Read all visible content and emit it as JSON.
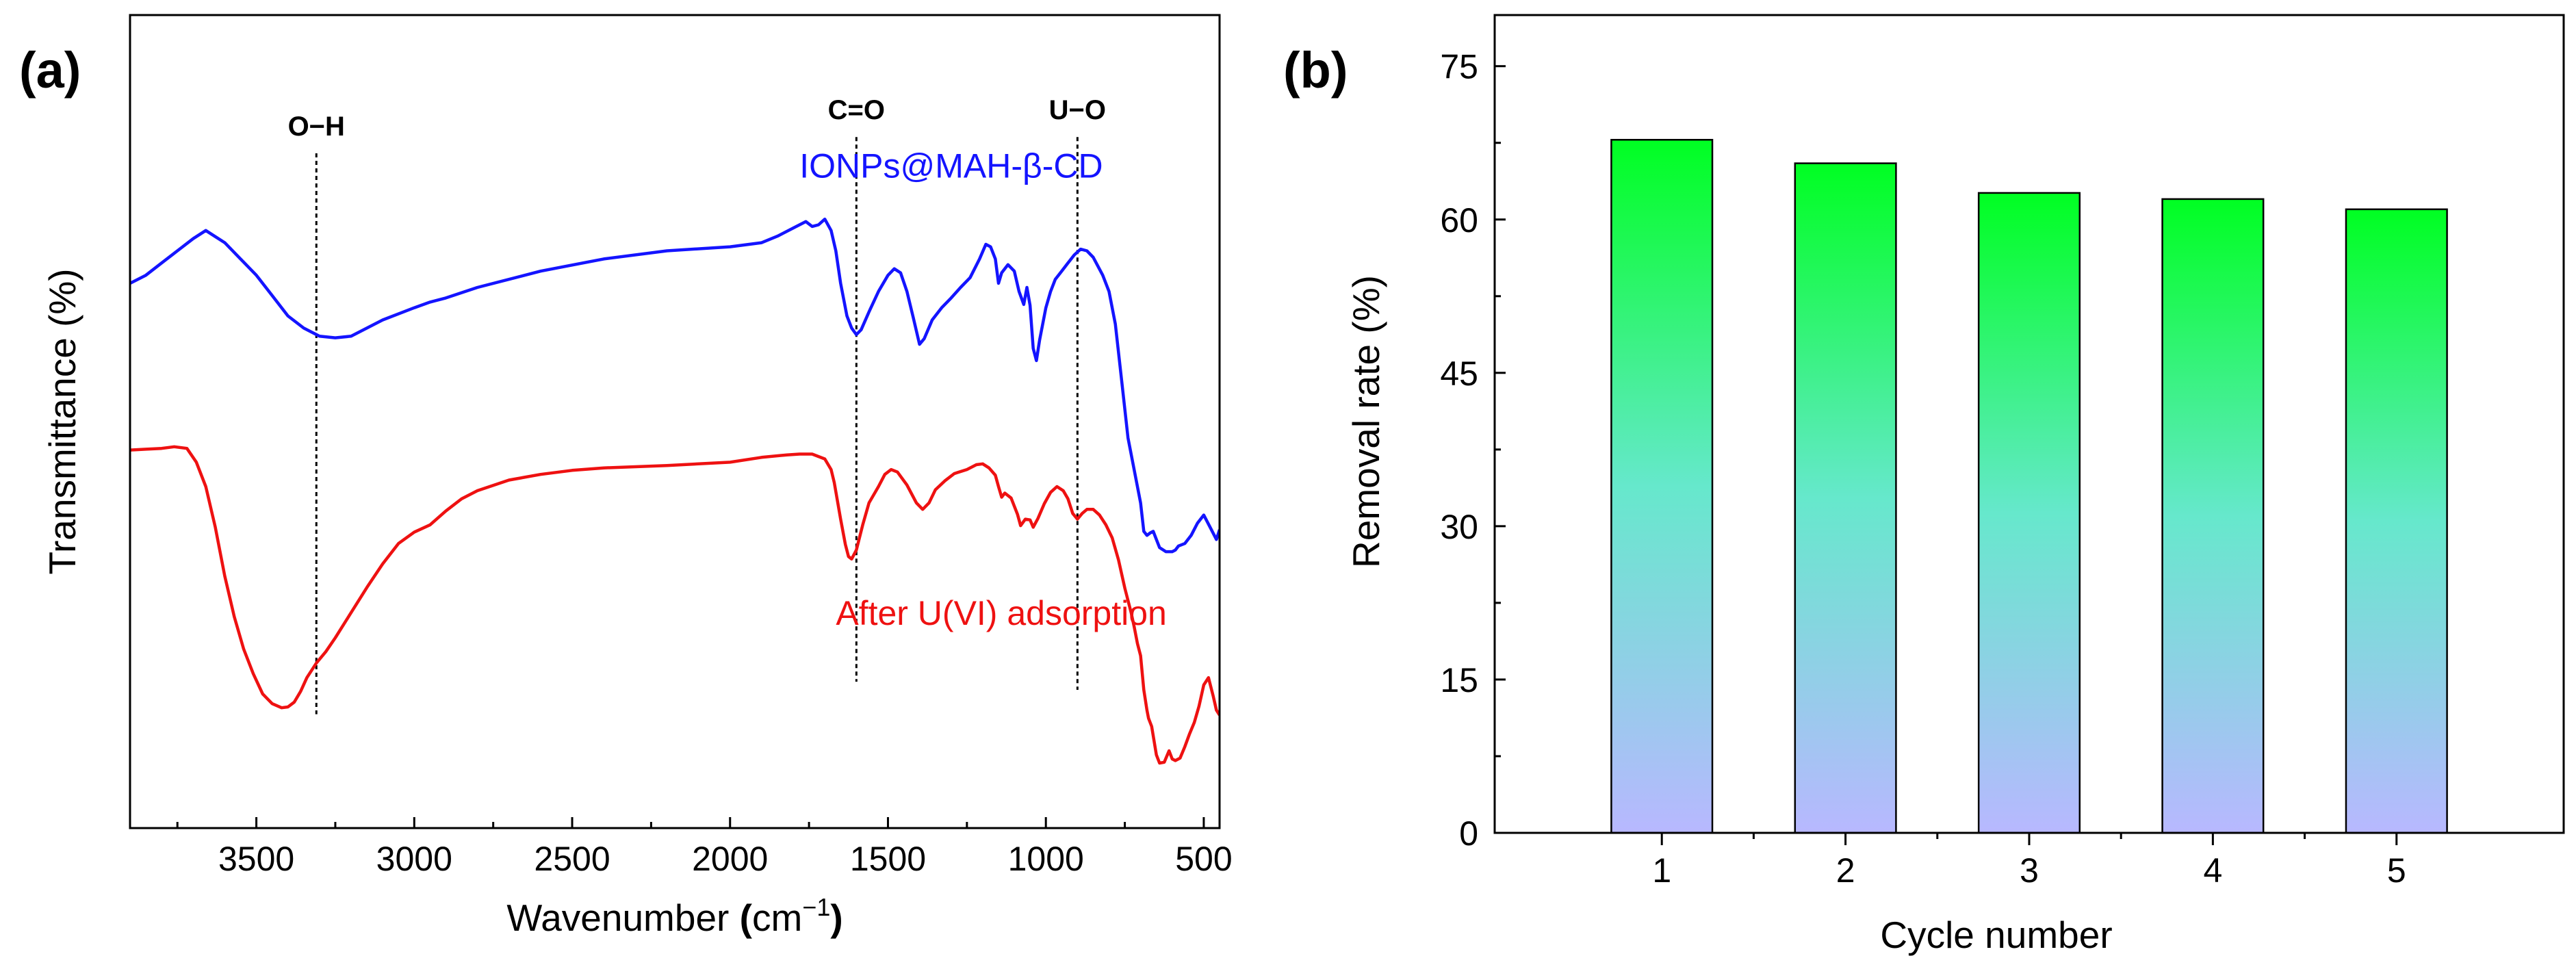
{
  "panel_a": {
    "label": "(a)"
  },
  "panel_b": {
    "label": "(b)"
  },
  "chart_data": [
    {
      "type": "line",
      "title": "",
      "xlabel": "Wavenumber (cm⁻¹)",
      "xlabel_main": "Wavenumber ",
      "xlabel_paren_open": "(",
      "xlabel_unit": "cm",
      "xlabel_sup": "−1",
      "xlabel_paren_close": ")",
      "ylabel": "Transmittance (%)",
      "xlim": [
        3900,
        450
      ],
      "x_reversed": true,
      "xticks": [
        3500,
        3000,
        2500,
        2000,
        1500,
        1000,
        500
      ],
      "xtick_labels": [
        "3500",
        "3000",
        "2500",
        "2000",
        "1500",
        "1000",
        "500"
      ],
      "y_units": "arbitrary (0 = bottom axis, 100 = top axis)",
      "ylim": [
        0,
        100
      ],
      "annotations": [
        {
          "text": "O−H",
          "x": 3310,
          "y_from": 14,
          "y_to": 83
        },
        {
          "text": "C=O",
          "x": 1600,
          "y_from": 18,
          "y_to": 85
        },
        {
          "text": "U−O",
          "x": 900,
          "y_from": 17,
          "y_to": 85
        }
      ],
      "series": [
        {
          "name": "IONPs@MAH-β-CD",
          "color": "#1414ff",
          "points": [
            [
              3900,
              67
            ],
            [
              3850,
              68
            ],
            [
              3800,
              69.5
            ],
            [
              3750,
              71
            ],
            [
              3700,
              72.5
            ],
            [
              3660,
              73.5
            ],
            [
              3640,
              73
            ],
            [
              3600,
              72
            ],
            [
              3550,
              70
            ],
            [
              3500,
              68
            ],
            [
              3450,
              65.5
            ],
            [
              3400,
              63
            ],
            [
              3350,
              61.5
            ],
            [
              3300,
              60.5
            ],
            [
              3250,
              60.3
            ],
            [
              3200,
              60.5
            ],
            [
              3150,
              61.5
            ],
            [
              3100,
              62.5
            ],
            [
              3000,
              64
            ],
            [
              2950,
              64.7
            ],
            [
              2900,
              65.2
            ],
            [
              2800,
              66.5
            ],
            [
              2600,
              68.5
            ],
            [
              2400,
              70
            ],
            [
              2200,
              71
            ],
            [
              2000,
              71.5
            ],
            [
              1900,
              72
            ],
            [
              1850,
              72.8
            ],
            [
              1800,
              73.8
            ],
            [
              1760,
              74.6
            ],
            [
              1740,
              74
            ],
            [
              1720,
              74.2
            ],
            [
              1700,
              74.9
            ],
            [
              1680,
              73.5
            ],
            [
              1665,
              71
            ],
            [
              1650,
              67
            ],
            [
              1630,
              63
            ],
            [
              1615,
              61.5
            ],
            [
              1600,
              60.7
            ],
            [
              1585,
              61.3
            ],
            [
              1560,
              63.5
            ],
            [
              1530,
              66
            ],
            [
              1500,
              68
            ],
            [
              1480,
              68.8
            ],
            [
              1460,
              68.3
            ],
            [
              1440,
              66
            ],
            [
              1420,
              62.8
            ],
            [
              1400,
              59.5
            ],
            [
              1385,
              60.2
            ],
            [
              1360,
              62.5
            ],
            [
              1330,
              64
            ],
            [
              1300,
              65.2
            ],
            [
              1270,
              66.5
            ],
            [
              1240,
              67.7
            ],
            [
              1210,
              70
            ],
            [
              1190,
              71.8
            ],
            [
              1175,
              71.5
            ],
            [
              1160,
              70
            ],
            [
              1150,
              67
            ],
            [
              1140,
              68.3
            ],
            [
              1120,
              69.3
            ],
            [
              1100,
              68.5
            ],
            [
              1085,
              66
            ],
            [
              1070,
              64.4
            ],
            [
              1060,
              66.5
            ],
            [
              1050,
              64.3
            ],
            [
              1040,
              59
            ],
            [
              1030,
              57.5
            ],
            [
              1020,
              60
            ],
            [
              1000,
              64
            ],
            [
              985,
              66
            ],
            [
              970,
              67.5
            ],
            [
              950,
              68.5
            ],
            [
              930,
              69.5
            ],
            [
              910,
              70.5
            ],
            [
              890,
              71.2
            ],
            [
              870,
              71
            ],
            [
              850,
              70.2
            ],
            [
              820,
              68
            ],
            [
              800,
              66
            ],
            [
              780,
              62
            ],
            [
              760,
              55
            ],
            [
              740,
              48
            ],
            [
              720,
              44
            ],
            [
              700,
              40
            ],
            [
              690,
              36.5
            ],
            [
              680,
              36
            ],
            [
              670,
              36.3
            ],
            [
              660,
              36.5
            ],
            [
              650,
              35.5
            ],
            [
              640,
              34.5
            ],
            [
              620,
              34
            ],
            [
              600,
              34
            ],
            [
              590,
              34.2
            ],
            [
              580,
              34.7
            ],
            [
              560,
              35
            ],
            [
              540,
              36
            ],
            [
              520,
              37.5
            ],
            [
              500,
              38.5
            ],
            [
              480,
              37
            ],
            [
              460,
              35.5
            ],
            [
              450,
              36.7
            ]
          ]
        },
        {
          "name": "After U(VI) adsorption",
          "color": "#ee1111",
          "points": [
            [
              3900,
              46.5
            ],
            [
              3850,
              46.6
            ],
            [
              3800,
              46.7
            ],
            [
              3760,
              46.9
            ],
            [
              3720,
              46.7
            ],
            [
              3690,
              45
            ],
            [
              3660,
              42
            ],
            [
              3630,
              37
            ],
            [
              3600,
              31
            ],
            [
              3570,
              26
            ],
            [
              3540,
              22
            ],
            [
              3510,
              19
            ],
            [
              3480,
              16.5
            ],
            [
              3450,
              15.3
            ],
            [
              3420,
              14.8
            ],
            [
              3400,
              14.9
            ],
            [
              3380,
              15.5
            ],
            [
              3360,
              16.8
            ],
            [
              3340,
              18.5
            ],
            [
              3310,
              20.3
            ],
            [
              3280,
              21.7
            ],
            [
              3250,
              23.4
            ],
            [
              3200,
              26.5
            ],
            [
              3150,
              29.6
            ],
            [
              3100,
              32.5
            ],
            [
              3050,
              35
            ],
            [
              3000,
              36.4
            ],
            [
              2950,
              37.3
            ],
            [
              2900,
              39
            ],
            [
              2850,
              40.5
            ],
            [
              2800,
              41.5
            ],
            [
              2700,
              42.8
            ],
            [
              2600,
              43.5
            ],
            [
              2500,
              44
            ],
            [
              2400,
              44.3
            ],
            [
              2200,
              44.6
            ],
            [
              2000,
              45
            ],
            [
              1900,
              45.6
            ],
            [
              1820,
              45.9
            ],
            [
              1780,
              46
            ],
            [
              1740,
              46
            ],
            [
              1700,
              45.4
            ],
            [
              1680,
              44.1
            ],
            [
              1670,
              42.5
            ],
            [
              1650,
              38
            ],
            [
              1635,
              34.9
            ],
            [
              1625,
              33.4
            ],
            [
              1615,
              33.1
            ],
            [
              1600,
              34.2
            ],
            [
              1580,
              37.3
            ],
            [
              1560,
              40
            ],
            [
              1530,
              42
            ],
            [
              1510,
              43.5
            ],
            [
              1490,
              44.1
            ],
            [
              1470,
              43.8
            ],
            [
              1440,
              42.2
            ],
            [
              1410,
              40
            ],
            [
              1390,
              39.2
            ],
            [
              1370,
              40
            ],
            [
              1350,
              41.6
            ],
            [
              1320,
              42.7
            ],
            [
              1290,
              43.6
            ],
            [
              1250,
              44.1
            ],
            [
              1220,
              44.7
            ],
            [
              1200,
              44.8
            ],
            [
              1180,
              44.3
            ],
            [
              1160,
              43.4
            ],
            [
              1150,
              42
            ],
            [
              1140,
              40.7
            ],
            [
              1130,
              41.2
            ],
            [
              1110,
              40.6
            ],
            [
              1090,
              38.6
            ],
            [
              1080,
              37.2
            ],
            [
              1065,
              38
            ],
            [
              1050,
              37.9
            ],
            [
              1040,
              37
            ],
            [
              1025,
              38.1
            ],
            [
              1005,
              39.9
            ],
            [
              985,
              41.3
            ],
            [
              965,
              42
            ],
            [
              945,
              41.5
            ],
            [
              930,
              40.5
            ],
            [
              915,
              38.7
            ],
            [
              900,
              38
            ],
            [
              885,
              38.7
            ],
            [
              870,
              39.2
            ],
            [
              850,
              39.2
            ],
            [
              830,
              38.5
            ],
            [
              810,
              37.3
            ],
            [
              790,
              35.7
            ],
            [
              770,
              33
            ],
            [
              750,
              29.5
            ],
            [
              730,
              26.5
            ],
            [
              720,
              24.7
            ],
            [
              710,
              22.7
            ],
            [
              700,
              21.2
            ],
            [
              690,
              17
            ],
            [
              680,
              14.5
            ],
            [
              675,
              13.5
            ],
            [
              665,
              12.5
            ],
            [
              650,
              9
            ],
            [
              640,
              8
            ],
            [
              625,
              8.1
            ],
            [
              610,
              9.5
            ],
            [
              600,
              8.5
            ],
            [
              590,
              8.3
            ],
            [
              575,
              8.6
            ],
            [
              560,
              10
            ],
            [
              545,
              11.6
            ],
            [
              530,
              13
            ],
            [
              515,
              15
            ],
            [
              500,
              17.6
            ],
            [
              485,
              18.5
            ],
            [
              470,
              16.2
            ],
            [
              460,
              14.5
            ],
            [
              450,
              13.9
            ]
          ]
        }
      ]
    },
    {
      "type": "bar",
      "title": "",
      "xlabel": "Cycle number",
      "ylabel": "Removal rate (%)",
      "categories": [
        "1",
        "2",
        "3",
        "4",
        "5"
      ],
      "values": [
        67.8,
        65.5,
        62.6,
        62,
        61
      ],
      "ylim": [
        0,
        80
      ],
      "yticks": [
        0,
        15,
        30,
        45,
        60,
        75
      ],
      "ytick_labels": [
        "0",
        "15",
        "30",
        "45",
        "60",
        "75"
      ],
      "fill_gradient": {
        "top": "#00ff22",
        "middle": "#66e8cc",
        "bottom": "#b8b8ff"
      },
      "bar_stroke": "#000000"
    }
  ]
}
